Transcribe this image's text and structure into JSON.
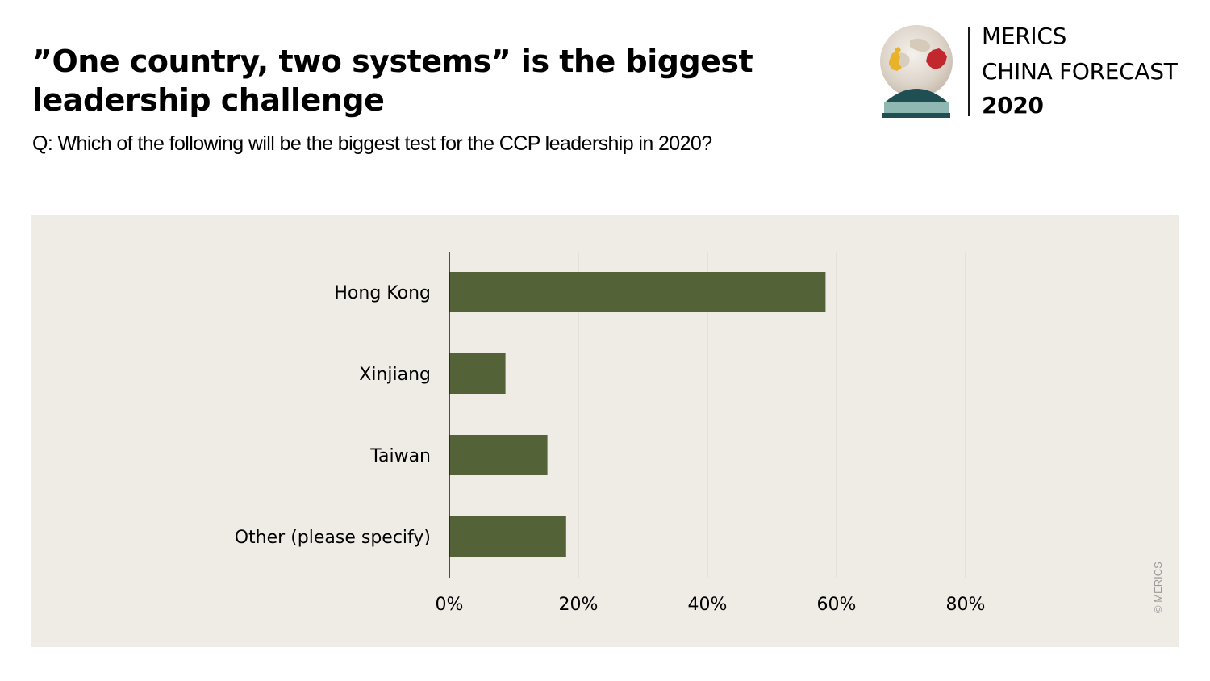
{
  "header": {
    "title": "”One country, two systems” is the biggest leadership challenge",
    "subtitle": "Q: Which of the following will be the biggest test for the CCP leadership in 2020?"
  },
  "logo": {
    "line1": "MERICS",
    "line2": "CHINA FORECAST",
    "line3": "2020"
  },
  "footer": {
    "copyright": "© MERICS"
  },
  "colors": {
    "bar": "#546237",
    "panel": "#efebe5",
    "grid": "#dcd6ce",
    "axis": "#1a1a1a"
  },
  "chart_data": {
    "type": "bar",
    "orientation": "horizontal",
    "categories": [
      "Hong Kong",
      "Xinjiang",
      "Taiwan",
      "Other (please specify)"
    ],
    "values": [
      58.3,
      8.7,
      15.2,
      18.1
    ],
    "xlim": [
      0,
      80
    ],
    "xticks": [
      0,
      20,
      40,
      60,
      80
    ],
    "xtick_labels": [
      "0%",
      "20%",
      "40%",
      "60%",
      "80%"
    ],
    "grid": true,
    "legend": "none"
  }
}
